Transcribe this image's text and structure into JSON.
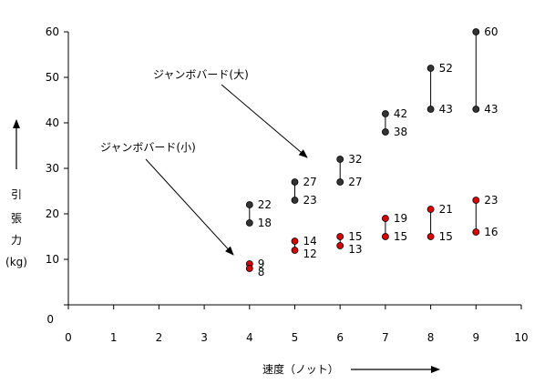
{
  "chart_data": {
    "type": "scatter",
    "title": "",
    "xlabel": "速度（ノット）",
    "ylabel": [
      "引",
      "張",
      "力",
      "(kg)"
    ],
    "xlim": [
      0,
      10
    ],
    "ylim": [
      0,
      60
    ],
    "x_ticks": [
      0,
      1,
      2,
      3,
      4,
      5,
      6,
      7,
      8,
      9,
      10
    ],
    "y_ticks": [
      0,
      10,
      20,
      30,
      40,
      50,
      60
    ],
    "grid": false,
    "series": [
      {
        "name": "ジャンボバード(大)",
        "color": "#333333",
        "ranges": [
          {
            "x": 4,
            "low": 18,
            "high": 22
          },
          {
            "x": 5,
            "low": 23,
            "high": 27
          },
          {
            "x": 6,
            "low": 27,
            "high": 32
          },
          {
            "x": 7,
            "low": 38,
            "high": 42
          },
          {
            "x": 8,
            "low": 43,
            "high": 52
          },
          {
            "x": 9,
            "low": 43,
            "high": 60
          }
        ]
      },
      {
        "name": "ジャンボバード(小)",
        "color": "#e00000",
        "ranges": [
          {
            "x": 4,
            "low": 8,
            "high": 9
          },
          {
            "x": 5,
            "low": 12,
            "high": 14
          },
          {
            "x": 6,
            "low": 13,
            "high": 15
          },
          {
            "x": 7,
            "low": 15,
            "high": 19
          },
          {
            "x": 8,
            "low": 15,
            "high": 21
          },
          {
            "x": 9,
            "low": 16,
            "high": 23
          }
        ]
      }
    ]
  },
  "chart_annotations": [
    {
      "text": "ジャンボバード(大)",
      "series": 0
    },
    {
      "text": "ジャンボバード(小)",
      "series": 1
    }
  ]
}
